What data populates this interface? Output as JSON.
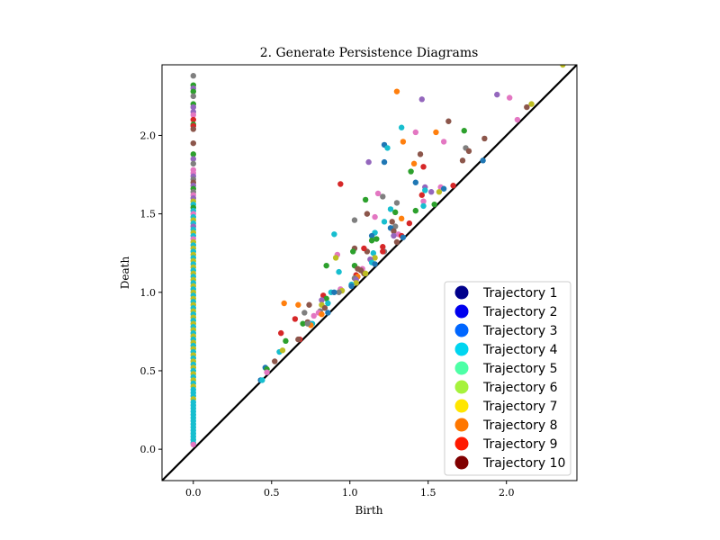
{
  "chart_data": {
    "type": "scatter",
    "title": "2. Generate Persistence Diagrams",
    "xlabel": "Birth",
    "ylabel": "Death",
    "xlim": [
      -0.2,
      2.45
    ],
    "ylim": [
      -0.2,
      2.45
    ],
    "xticks": [
      0.0,
      0.5,
      1.0,
      1.5,
      2.0
    ],
    "xtick_labels": [
      "0.0",
      "0.5",
      "1.0",
      "1.5",
      "2.0"
    ],
    "yticks": [
      0.0,
      0.5,
      1.0,
      1.5,
      2.0
    ],
    "ytick_labels": [
      "0.0",
      "0.5",
      "1.0",
      "1.5",
      "2.0"
    ],
    "diagonal": true,
    "grid": false,
    "legend_position": "lower-right",
    "legend": [
      {
        "label": "Trajectory 1",
        "color": "#00008b"
      },
      {
        "label": "Trajectory 2",
        "color": "#0000ee"
      },
      {
        "label": "Trajectory 3",
        "color": "#0066ff"
      },
      {
        "label": "Trajectory 4",
        "color": "#00d5f0"
      },
      {
        "label": "Trajectory 5",
        "color": "#4dffa6"
      },
      {
        "label": "Trajectory 6",
        "color": "#a6f23c"
      },
      {
        "label": "Trajectory 7",
        "color": "#ffe600"
      },
      {
        "label": "Trajectory 8",
        "color": "#ff7700"
      },
      {
        "label": "Trajectory 9",
        "color": "#ff1a00"
      },
      {
        "label": "Trajectory 10",
        "color": "#800000"
      }
    ],
    "point_colors": [
      "#1f77b4",
      "#ff7f0e",
      "#2ca02c",
      "#d62728",
      "#9467bd",
      "#8c564b",
      "#e377c2",
      "#7f7f7f",
      "#bcbd22",
      "#17becf"
    ],
    "h0_points": [
      [
        0,
        2.38,
        7
      ],
      [
        0,
        2.32,
        2
      ],
      [
        0,
        2.3,
        4
      ],
      [
        0,
        2.28,
        2
      ],
      [
        0,
        2.25,
        7
      ],
      [
        0,
        2.2,
        2
      ],
      [
        0,
        2.18,
        4
      ],
      [
        0,
        2.15,
        4
      ],
      [
        0,
        2.13,
        6
      ],
      [
        0,
        2.1,
        3
      ],
      [
        0,
        2.07,
        2
      ],
      [
        0,
        2.06,
        3
      ],
      [
        0,
        2.04,
        5
      ],
      [
        0,
        1.95,
        5
      ],
      [
        0,
        1.88,
        2
      ],
      [
        0,
        1.85,
        4
      ],
      [
        0,
        1.82,
        7
      ],
      [
        0,
        1.78,
        6
      ],
      [
        0,
        1.76,
        6
      ],
      [
        0,
        1.74,
        4
      ],
      [
        0,
        1.72,
        7
      ],
      [
        0,
        1.7,
        5
      ],
      [
        0,
        1.68,
        4
      ],
      [
        0,
        1.66,
        2
      ],
      [
        0,
        1.64,
        7
      ],
      [
        0,
        1.62,
        6
      ],
      [
        0,
        1.6,
        4
      ],
      [
        0,
        1.58,
        8
      ],
      [
        0,
        1.56,
        9
      ],
      [
        0,
        1.54,
        2
      ],
      [
        0,
        1.52,
        9
      ],
      [
        0,
        1.5,
        6
      ],
      [
        0,
        1.48,
        9
      ],
      [
        0,
        1.46,
        8
      ],
      [
        0,
        1.44,
        9
      ],
      [
        0,
        1.42,
        4
      ],
      [
        0,
        1.4,
        9
      ],
      [
        0,
        1.38,
        8
      ],
      [
        0,
        1.36,
        9
      ],
      [
        0,
        1.34,
        6
      ],
      [
        0,
        1.32,
        8
      ],
      [
        0,
        1.3,
        9
      ],
      [
        0,
        1.28,
        8
      ],
      [
        0,
        1.26,
        9
      ],
      [
        0,
        1.24,
        8
      ],
      [
        0,
        1.22,
        9
      ],
      [
        0,
        1.2,
        8
      ],
      [
        0,
        1.18,
        9
      ],
      [
        0,
        1.16,
        8
      ],
      [
        0,
        1.14,
        9
      ],
      [
        0,
        1.12,
        8
      ],
      [
        0,
        1.1,
        9
      ],
      [
        0,
        1.08,
        8
      ],
      [
        0,
        1.06,
        9
      ],
      [
        0,
        1.04,
        8
      ],
      [
        0,
        1.02,
        9
      ],
      [
        0,
        1.0,
        8
      ],
      [
        0,
        0.98,
        9
      ],
      [
        0,
        0.96,
        8
      ],
      [
        0,
        0.94,
        9
      ],
      [
        0,
        0.92,
        8
      ],
      [
        0,
        0.9,
        9
      ],
      [
        0,
        0.88,
        8
      ],
      [
        0,
        0.86,
        9
      ],
      [
        0,
        0.84,
        8
      ],
      [
        0,
        0.82,
        9
      ],
      [
        0,
        0.8,
        8
      ],
      [
        0,
        0.78,
        9
      ],
      [
        0,
        0.76,
        8
      ],
      [
        0,
        0.74,
        9
      ],
      [
        0,
        0.72,
        8
      ],
      [
        0,
        0.7,
        9
      ],
      [
        0,
        0.68,
        8
      ],
      [
        0,
        0.66,
        9
      ],
      [
        0,
        0.64,
        8
      ],
      [
        0,
        0.62,
        9
      ],
      [
        0,
        0.6,
        8
      ],
      [
        0,
        0.58,
        9
      ],
      [
        0,
        0.56,
        8
      ],
      [
        0,
        0.54,
        9
      ],
      [
        0,
        0.52,
        8
      ],
      [
        0,
        0.5,
        9
      ],
      [
        0,
        0.48,
        8
      ],
      [
        0,
        0.46,
        9
      ],
      [
        0,
        0.44,
        8
      ],
      [
        0,
        0.42,
        9
      ],
      [
        0,
        0.4,
        8
      ],
      [
        0,
        0.38,
        9
      ],
      [
        0,
        0.36,
        9
      ],
      [
        0,
        0.34,
        9
      ],
      [
        0,
        0.32,
        8
      ],
      [
        0,
        0.3,
        9
      ],
      [
        0,
        0.28,
        9
      ],
      [
        0,
        0.26,
        9
      ],
      [
        0,
        0.24,
        9
      ],
      [
        0,
        0.22,
        9
      ],
      [
        0,
        0.2,
        9
      ],
      [
        0,
        0.18,
        9
      ],
      [
        0,
        0.16,
        9
      ],
      [
        0,
        0.14,
        9
      ],
      [
        0,
        0.12,
        9
      ],
      [
        0,
        0.1,
        9
      ],
      [
        0,
        0.08,
        9
      ],
      [
        0,
        0.06,
        9
      ],
      [
        0,
        0.04,
        9
      ],
      [
        0,
        0.03,
        6
      ]
    ],
    "h1_points": [
      [
        2.36,
        2.45,
        8
      ],
      [
        1.3,
        2.28,
        1
      ],
      [
        1.46,
        2.23,
        4
      ],
      [
        1.94,
        2.26,
        4
      ],
      [
        2.02,
        2.24,
        6
      ],
      [
        2.16,
        2.2,
        8
      ],
      [
        2.13,
        2.18,
        5
      ],
      [
        2.07,
        2.1,
        6
      ],
      [
        1.63,
        2.09,
        5
      ],
      [
        1.33,
        2.05,
        9
      ],
      [
        1.42,
        2.02,
        6
      ],
      [
        1.55,
        2.02,
        1
      ],
      [
        1.73,
        2.03,
        2
      ],
      [
        1.6,
        1.96,
        6
      ],
      [
        1.86,
        1.98,
        5
      ],
      [
        1.34,
        1.96,
        1
      ],
      [
        1.22,
        1.94,
        0
      ],
      [
        1.24,
        1.92,
        9
      ],
      [
        1.74,
        1.92,
        7
      ],
      [
        1.76,
        1.9,
        5
      ],
      [
        1.45,
        1.88,
        5
      ],
      [
        1.72,
        1.84,
        5
      ],
      [
        1.85,
        1.84,
        0
      ],
      [
        1.12,
        1.83,
        4
      ],
      [
        1.22,
        1.83,
        0
      ],
      [
        1.41,
        1.82,
        1
      ],
      [
        1.47,
        1.8,
        3
      ],
      [
        1.39,
        1.77,
        2
      ],
      [
        1.42,
        1.7,
        0
      ],
      [
        0.94,
        1.69,
        3
      ],
      [
        1.48,
        1.67,
        4
      ],
      [
        1.58,
        1.67,
        6
      ],
      [
        1.6,
        1.66,
        0
      ],
      [
        1.52,
        1.64,
        4
      ],
      [
        1.57,
        1.64,
        8
      ],
      [
        1.66,
        1.68,
        3
      ],
      [
        1.48,
        1.65,
        9
      ],
      [
        1.46,
        1.62,
        3
      ],
      [
        1.18,
        1.63,
        6
      ],
      [
        1.21,
        1.61,
        7
      ],
      [
        1.1,
        1.59,
        2
      ],
      [
        1.47,
        1.58,
        6
      ],
      [
        1.3,
        1.57,
        7
      ],
      [
        1.54,
        1.56,
        2
      ],
      [
        1.47,
        1.55,
        9
      ],
      [
        1.26,
        1.53,
        9
      ],
      [
        1.29,
        1.51,
        2
      ],
      [
        1.42,
        1.52,
        2
      ],
      [
        1.11,
        1.5,
        5
      ],
      [
        1.03,
        1.46,
        7
      ],
      [
        1.16,
        1.48,
        6
      ],
      [
        1.22,
        1.45,
        9
      ],
      [
        1.33,
        1.47,
        1
      ],
      [
        1.27,
        1.45,
        5
      ],
      [
        1.38,
        1.44,
        3
      ],
      [
        1.29,
        1.42,
        7
      ],
      [
        1.26,
        1.41,
        0
      ],
      [
        1.28,
        1.39,
        5
      ],
      [
        1.31,
        1.37,
        6
      ],
      [
        1.28,
        1.36,
        4
      ],
      [
        1.16,
        1.38,
        9
      ],
      [
        1.14,
        1.36,
        0
      ],
      [
        1.33,
        1.36,
        3
      ],
      [
        1.34,
        1.35,
        0
      ],
      [
        0.9,
        1.37,
        9
      ],
      [
        1.17,
        1.34,
        2
      ],
      [
        1.3,
        1.32,
        5
      ],
      [
        1.21,
        1.29,
        3
      ],
      [
        1.14,
        1.33,
        2
      ],
      [
        1.03,
        1.28,
        5
      ],
      [
        1.11,
        1.26,
        5
      ],
      [
        1.22,
        1.26,
        7
      ],
      [
        1.15,
        1.25,
        9
      ],
      [
        1.21,
        1.26,
        3
      ],
      [
        1.02,
        1.26,
        2
      ],
      [
        1.09,
        1.28,
        3
      ],
      [
        1.16,
        1.22,
        8
      ],
      [
        0.92,
        1.24,
        6
      ],
      [
        0.91,
        1.22,
        8
      ],
      [
        1.13,
        1.21,
        4
      ],
      [
        1.14,
        1.19,
        9
      ],
      [
        1.16,
        1.18,
        0
      ],
      [
        0.85,
        1.17,
        2
      ],
      [
        1.03,
        1.17,
        2
      ],
      [
        1.05,
        1.15,
        5
      ],
      [
        1.08,
        1.15,
        6
      ],
      [
        1.07,
        1.14,
        5
      ],
      [
        0.93,
        1.13,
        9
      ],
      [
        1.09,
        1.12,
        5
      ],
      [
        1.1,
        1.12,
        8
      ],
      [
        1.04,
        1.11,
        3
      ],
      [
        1.05,
        1.1,
        1
      ],
      [
        1.03,
        1.09,
        7
      ],
      [
        1.04,
        1.08,
        4
      ],
      [
        1.04,
        1.06,
        8
      ],
      [
        1.01,
        1.05,
        9
      ],
      [
        1.01,
        1.04,
        0
      ],
      [
        0.94,
        1.02,
        6
      ],
      [
        0.95,
        1.01,
        8
      ],
      [
        0.93,
        1.0,
        7
      ],
      [
        0.88,
        1.0,
        9
      ],
      [
        0.9,
        1.0,
        0
      ],
      [
        0.83,
        0.98,
        3
      ],
      [
        0.85,
        0.96,
        2
      ],
      [
        0.82,
        0.95,
        4
      ],
      [
        0.86,
        0.93,
        9
      ],
      [
        0.74,
        0.92,
        5
      ],
      [
        0.67,
        0.92,
        1
      ],
      [
        0.82,
        0.92,
        8
      ],
      [
        0.58,
        0.93,
        1
      ],
      [
        0.84,
        0.9,
        5
      ],
      [
        0.81,
        0.88,
        7
      ],
      [
        0.8,
        0.87,
        6
      ],
      [
        0.82,
        0.86,
        1
      ],
      [
        0.86,
        0.87,
        0
      ],
      [
        0.71,
        0.87,
        7
      ],
      [
        0.77,
        0.85,
        6
      ],
      [
        0.65,
        0.83,
        3
      ],
      [
        0.73,
        0.81,
        5
      ],
      [
        0.75,
        0.8,
        4
      ],
      [
        0.76,
        0.8,
        9
      ],
      [
        0.75,
        0.79,
        1
      ],
      [
        0.7,
        0.8,
        2
      ],
      [
        0.73,
        0.8,
        7
      ],
      [
        0.56,
        0.74,
        3
      ],
      [
        0.59,
        0.69,
        2
      ],
      [
        0.68,
        0.7,
        3
      ],
      [
        0.67,
        0.7,
        5
      ],
      [
        0.55,
        0.62,
        9
      ],
      [
        0.57,
        0.63,
        8
      ],
      [
        0.52,
        0.56,
        5
      ],
      [
        0.46,
        0.52,
        0
      ],
      [
        0.47,
        0.51,
        2
      ],
      [
        0.47,
        0.49,
        6
      ],
      [
        0.43,
        0.44,
        0
      ],
      [
        0.44,
        0.44,
        9
      ]
    ]
  }
}
